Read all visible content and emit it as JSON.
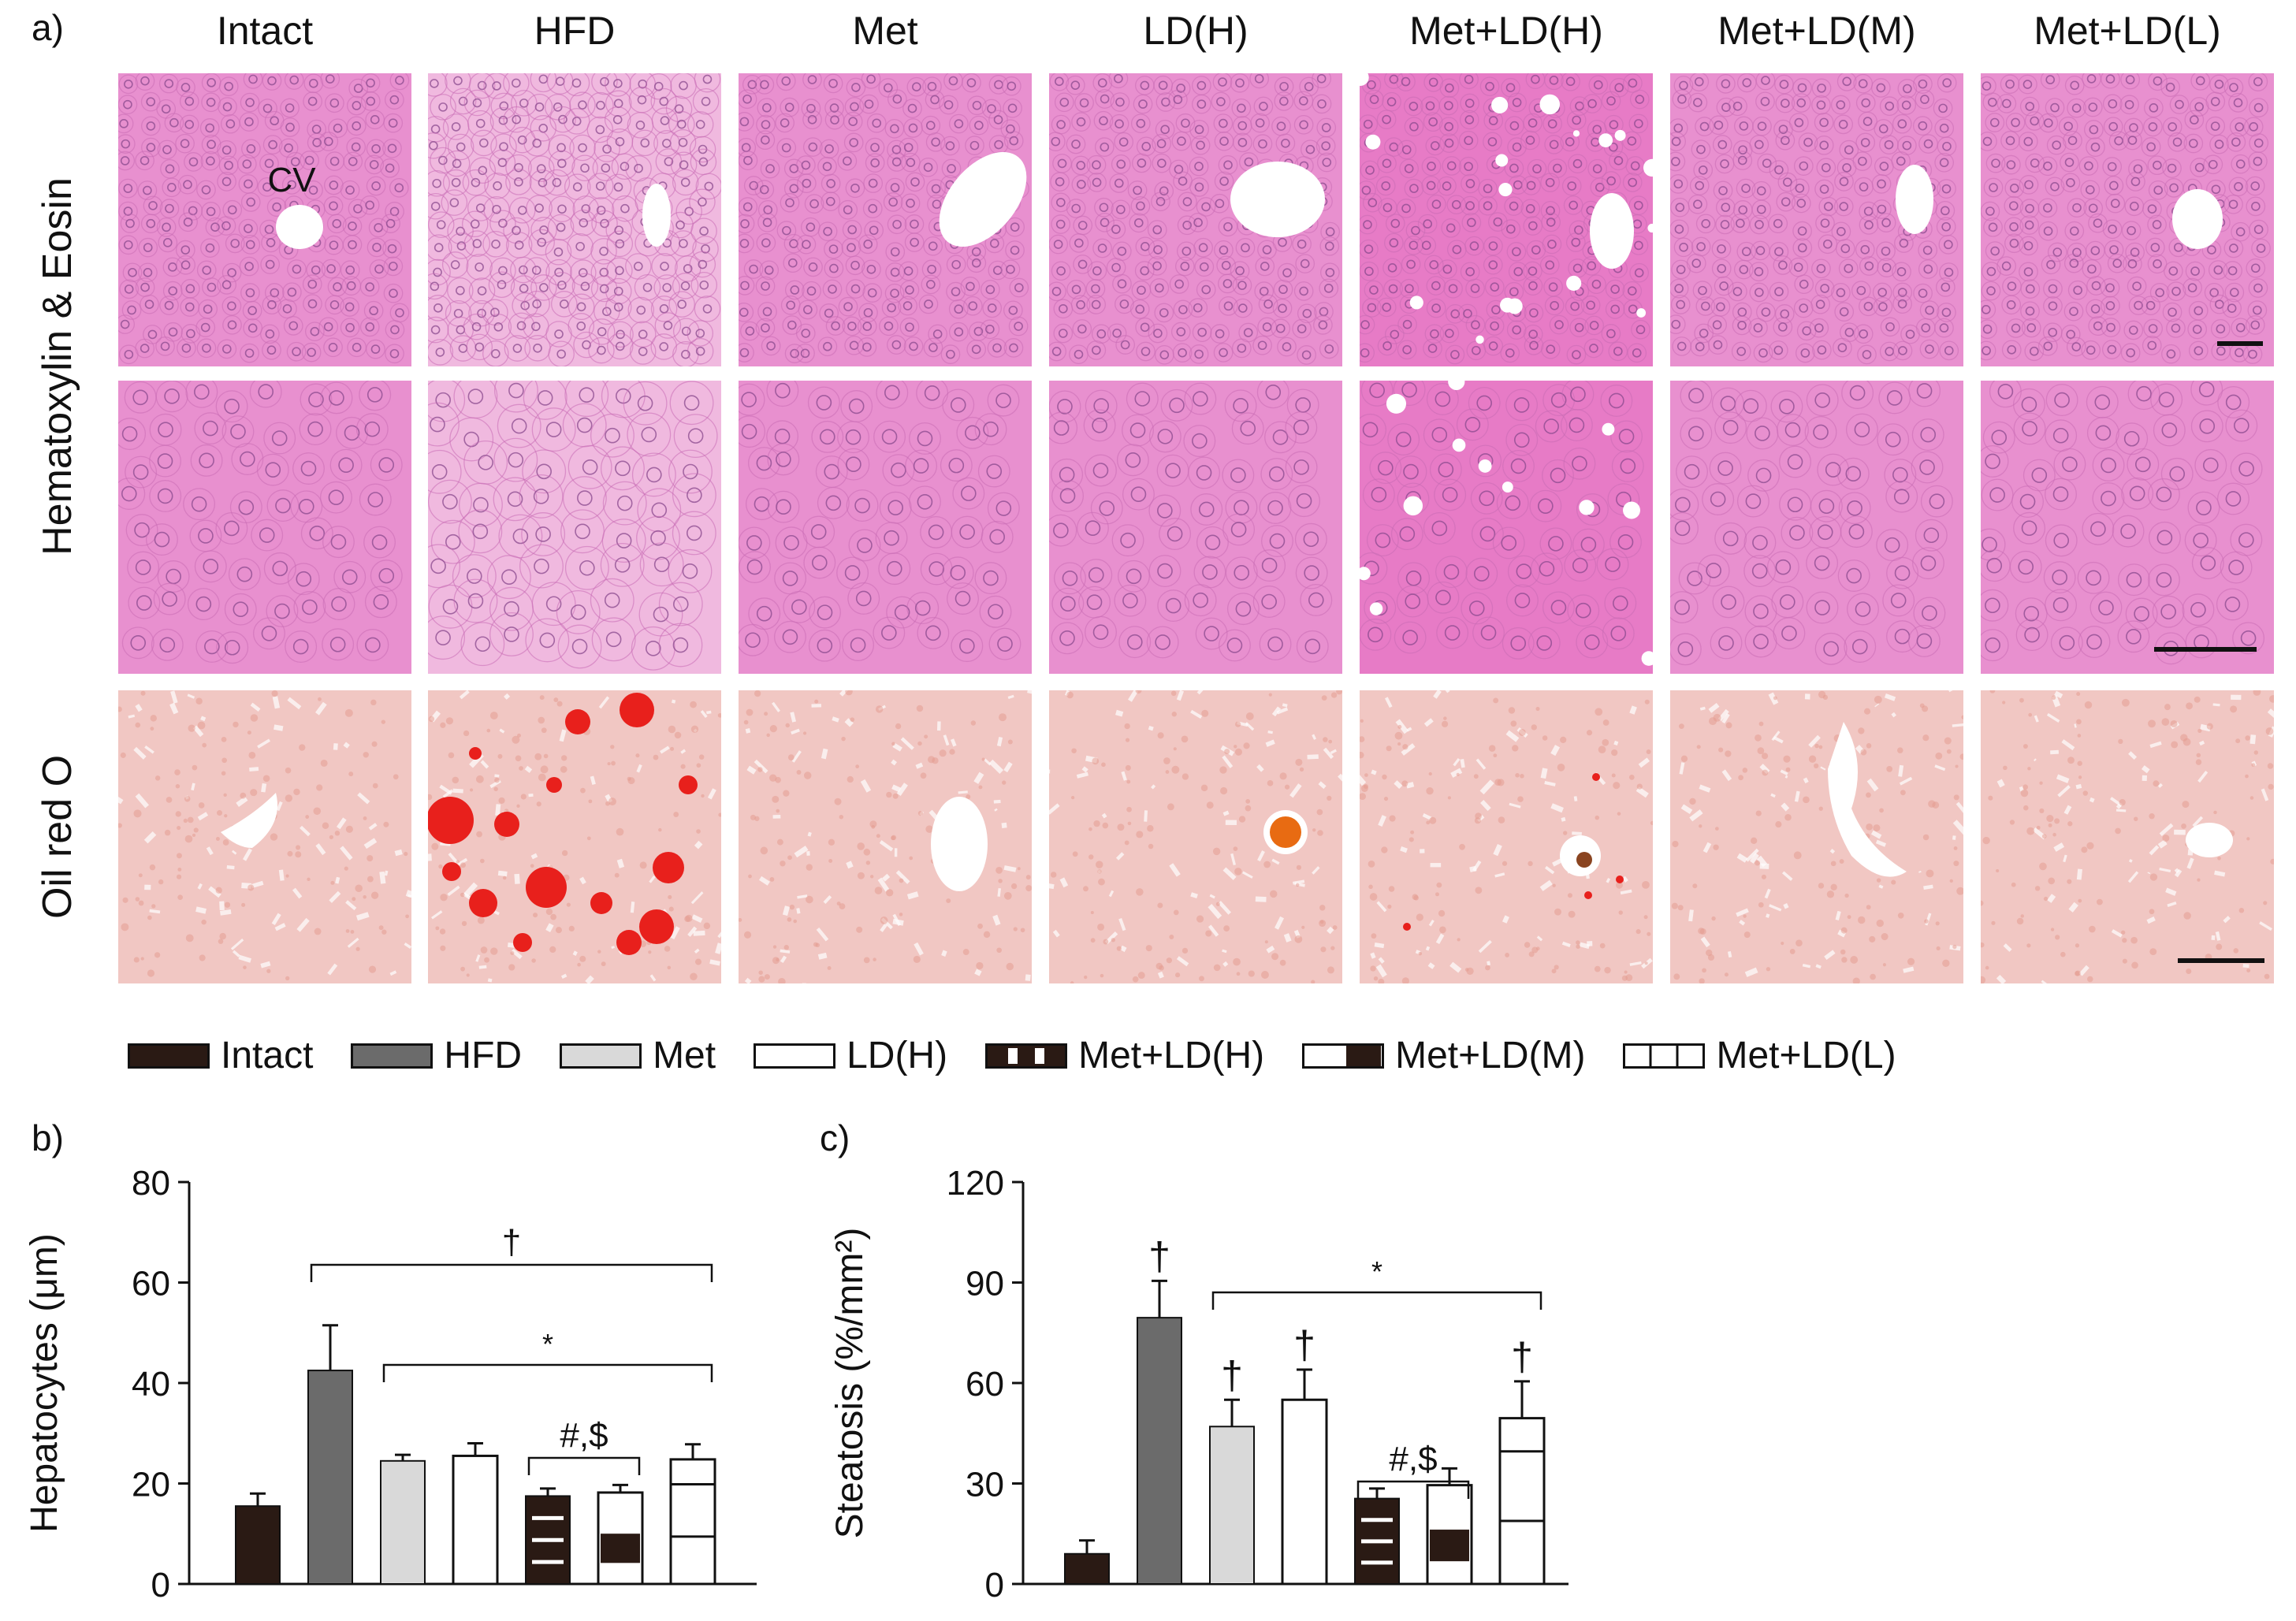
{
  "panel_a": {
    "letter": "a)",
    "columns": [
      "Intact",
      "HFD",
      "Met",
      "LD(H)",
      "Met+LD(H)",
      "Met+LD(M)",
      "Met+LD(L)"
    ],
    "rows": [
      "Hematoxylin & Eosin",
      "Oil red O"
    ],
    "cv_label": "CV"
  },
  "legend": [
    "Intact",
    "HFD",
    "Met",
    "LD(H)",
    "Met+LD(H)",
    "Met+LD(M)",
    "Met+LD(L)"
  ],
  "chart_data": [
    {
      "panel": "b)",
      "type": "bar",
      "ylabel": "Hepatocytes (μm)",
      "ylim": [
        0,
        80
      ],
      "yticks": [
        0,
        20,
        40,
        60,
        80
      ],
      "categories": [
        "Intact",
        "HFD",
        "Met",
        "LD(H)",
        "Met+LD(H)",
        "Met+LD(M)",
        "Met+LD(L)"
      ],
      "values": [
        15.5,
        42.5,
        24.5,
        25.5,
        17.5,
        18.2,
        24.8
      ],
      "errors": [
        2.5,
        9.0,
        1.2,
        2.5,
        1.5,
        1.5,
        3.0
      ],
      "annotations": [
        {
          "text": "†",
          "from": "HFD",
          "to": "Met+LD(L)"
        },
        {
          "text": "*",
          "from": "Met",
          "to": "Met+LD(L)"
        },
        {
          "text": "#,$",
          "from": "Met+LD(H)",
          "to": "Met+LD(M)"
        }
      ]
    },
    {
      "panel": "c)",
      "type": "bar",
      "ylabel": "Steatosis (%/mm²)",
      "ylim": [
        0,
        120
      ],
      "yticks": [
        0,
        30,
        60,
        90,
        120
      ],
      "categories": [
        "Intact",
        "HFD",
        "Met",
        "LD(H)",
        "Met+LD(H)",
        "Met+LD(M)",
        "Met+LD(L)"
      ],
      "values": [
        9.0,
        79.5,
        47.0,
        55.0,
        25.5,
        29.5,
        49.5
      ],
      "errors": [
        4.0,
        11.0,
        8.0,
        9.0,
        3.0,
        5.0,
        11.0
      ],
      "bar_marks": [
        "",
        "†",
        "†",
        "†",
        "",
        "",
        "†"
      ],
      "annotations": [
        {
          "text": "*",
          "from": "Met",
          "to": "Met+LD(L)"
        },
        {
          "text": "#,$",
          "from": "Met+LD(H)",
          "to": "Met+LD(M)"
        }
      ]
    }
  ],
  "colors": {
    "intact": "#2a1a14",
    "hfd": "#6b6b6b",
    "met": "#d9d9d9",
    "ld_h": "#ffffff",
    "he_bg": "#e890cf",
    "oro_bg": "#f1c7c3",
    "lipid": "#e8201c"
  }
}
